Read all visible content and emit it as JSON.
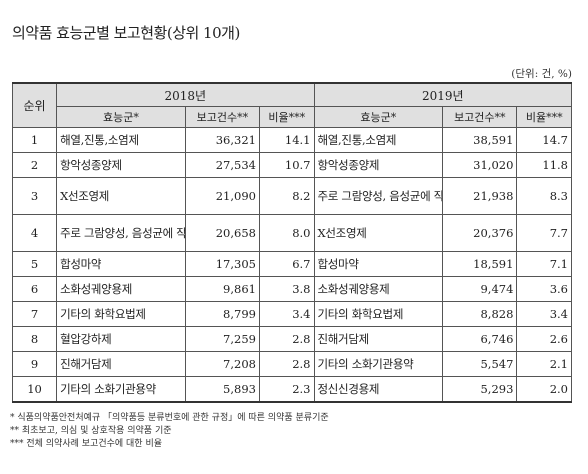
{
  "title": "의약품 효능군별 보고현황(상위 10개)",
  "unit": "(단위: 건, %)",
  "header": {
    "rank": "순위",
    "years": [
      "2018년",
      "2019년"
    ],
    "efficacy": "효능군*",
    "count": "보고건수**",
    "ratio": "비율***"
  },
  "rows": [
    {
      "rank": "1",
      "e2018": "해열,진통,소염제",
      "c2018": "36,321",
      "r2018": "14.1",
      "e2019": "해열,진통,소염제",
      "c2019": "38,591",
      "r2019": "14.7"
    },
    {
      "rank": "2",
      "e2018": "항악성종양제",
      "c2018": "27,534",
      "r2018": "10.7",
      "e2019": "항악성종양제",
      "c2019": "31,020",
      "r2019": "11.8"
    },
    {
      "rank": "3",
      "e2018": "X선조영제",
      "c2018": "21,090",
      "r2018": "8.2",
      "e2019": "주로 그람양성, 음성균에 작용하는 것",
      "c2019": "21,938",
      "r2019": "8.3"
    },
    {
      "rank": "4",
      "e2018": "주로 그람양성, 음성균에 작용하는 것",
      "c2018": "20,658",
      "r2018": "8.0",
      "e2019": "X선조영제",
      "c2019": "20,376",
      "r2019": "7.7"
    },
    {
      "rank": "5",
      "e2018": "합성마약",
      "c2018": "17,305",
      "r2018": "6.7",
      "e2019": "합성마약",
      "c2019": "18,591",
      "r2019": "7.1"
    },
    {
      "rank": "6",
      "e2018": "소화성궤양용제",
      "c2018": "9,861",
      "r2018": "3.8",
      "e2019": "소화성궤양용제",
      "c2019": "9,474",
      "r2019": "3.6"
    },
    {
      "rank": "7",
      "e2018": "기타의 화학요법제",
      "c2018": "8,799",
      "r2018": "3.4",
      "e2019": "기타의 화학요법제",
      "c2019": "8,828",
      "r2019": "3.4"
    },
    {
      "rank": "8",
      "e2018": "혈압강하제",
      "c2018": "7,259",
      "r2018": "2.8",
      "e2019": "진해거담제",
      "c2019": "6,746",
      "r2019": "2.6"
    },
    {
      "rank": "9",
      "e2018": "진해거담제",
      "c2018": "7,208",
      "r2018": "2.8",
      "e2019": "기타의 소화기관용약",
      "c2019": "5,547",
      "r2019": "2.1"
    },
    {
      "rank": "10",
      "e2018": "기타의 소화기관용약",
      "c2018": "5,893",
      "r2018": "2.3",
      "e2019": "정신신경용제",
      "c2019": "5,293",
      "r2019": "2.0"
    }
  ],
  "notes": [
    "* 식품의약품안전처예규 「의약품등 분류번호에 관한 규정」에 따른 의약품 분류기준",
    "** 최초보고, 의심 및 상호작용 의약품 기준",
    "*** 전체 의약사례 보고건수에 대한 비율"
  ]
}
